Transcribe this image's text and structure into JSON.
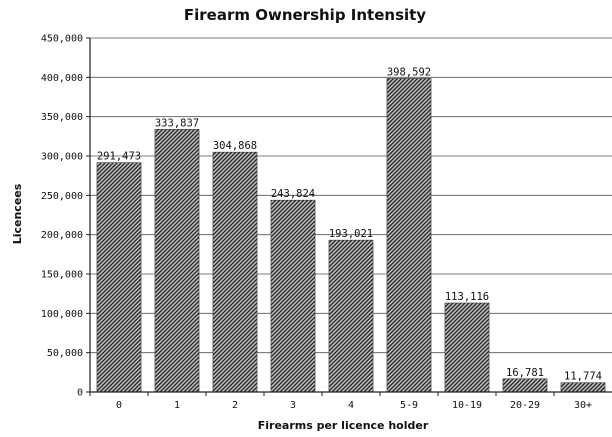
{
  "chart_data": {
    "type": "bar",
    "title": "Firearm Ownership Intensity",
    "xlabel": "Firearms per licence holder",
    "ylabel": "Licencees",
    "categories": [
      "0",
      "1",
      "2",
      "3",
      "4",
      "5-9",
      "10-19",
      "20-29",
      "30+"
    ],
    "values": [
      291473,
      333837,
      304868,
      243824,
      193021,
      398592,
      113116,
      16781,
      11774
    ],
    "value_labels": [
      "291,473",
      "333,837",
      "304,868",
      "243,824",
      "193,021",
      "398,592",
      "113,116",
      "16,781",
      "11,774"
    ],
    "ylim": [
      0,
      450000
    ],
    "yticks": [
      0,
      50000,
      100000,
      150000,
      200000,
      250000,
      300000,
      350000,
      400000,
      450000
    ],
    "ytick_labels": [
      "0",
      "50,000",
      "100,000",
      "150,000",
      "200,000",
      "250,000",
      "300,000",
      "350,000",
      "400,000",
      "450,000"
    ],
    "grid": true,
    "legend": "none",
    "bar_fill": "hatched",
    "bar_color": "#333333"
  }
}
